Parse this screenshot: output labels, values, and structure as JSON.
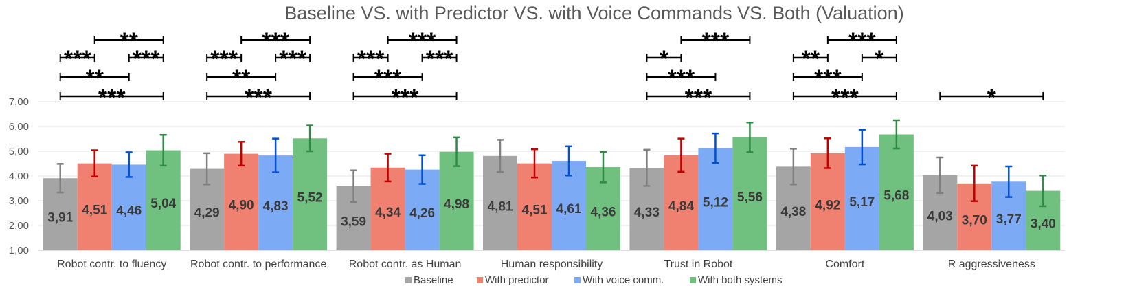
{
  "chart_data": {
    "type": "bar",
    "title": "Baseline VS. with Predictor VS. with Voice Commands VS. Both (Valuation)",
    "xlabel": "",
    "ylabel": "",
    "ylim": [
      1,
      7
    ],
    "yticks": [
      "1,00",
      "2,00",
      "3,00",
      "4,00",
      "5,00",
      "6,00",
      "7,00"
    ],
    "grid": true,
    "legend_position": "bottom",
    "categories": [
      "Robot contr. to fluency",
      "Robot contr. to performance",
      "Robot contr. as Human",
      "Human responsibility",
      "Trust in Robot",
      "Comfort",
      "R aggressiveness"
    ],
    "series": [
      {
        "name": "Baseline",
        "color": "#a5a5a5",
        "error_color": "#808080",
        "values": [
          3.91,
          4.29,
          3.59,
          4.81,
          4.33,
          4.38,
          4.03
        ],
        "labels": [
          "3,91",
          "4,29",
          "3,59",
          "4,81",
          "4,33",
          "4,38",
          "4,03"
        ],
        "errors": [
          0.58,
          0.63,
          0.64,
          0.65,
          0.73,
          0.72,
          0.72
        ]
      },
      {
        "name": "With predictor",
        "color": "#f08070",
        "error_color": "#c00000",
        "values": [
          4.51,
          4.9,
          4.34,
          4.51,
          4.84,
          4.92,
          3.7
        ],
        "labels": [
          "4,51",
          "4,90",
          "4,34",
          "4,51",
          "4,84",
          "4,92",
          "3,70"
        ],
        "errors": [
          0.53,
          0.48,
          0.56,
          0.57,
          0.67,
          0.6,
          0.72
        ]
      },
      {
        "name": "With voice comm.",
        "color": "#7caaf5",
        "error_color": "#0050d0",
        "values": [
          4.46,
          4.83,
          4.26,
          4.61,
          5.12,
          5.17,
          3.77
        ],
        "labels": [
          "4,46",
          "4,83",
          "4,26",
          "4,61",
          "5,12",
          "5,17",
          "3,77"
        ],
        "errors": [
          0.5,
          0.68,
          0.58,
          0.59,
          0.6,
          0.7,
          0.62
        ]
      },
      {
        "name": "With both systems",
        "color": "#70c080",
        "error_color": "#2e8b45",
        "values": [
          5.04,
          5.52,
          4.98,
          4.36,
          5.56,
          5.68,
          3.4
        ],
        "labels": [
          "5,04",
          "5,52",
          "4,98",
          "4,36",
          "5,56",
          "5,68",
          "3,40"
        ],
        "errors": [
          0.62,
          0.52,
          0.58,
          0.62,
          0.6,
          0.57,
          0.62
        ]
      }
    ],
    "significance": [
      {
        "category": 0,
        "from": 1,
        "to": 3,
        "label": "**"
      },
      {
        "category": 0,
        "from": 0,
        "to": 1,
        "label": "***"
      },
      {
        "category": 0,
        "from": 2,
        "to": 3,
        "label": "***"
      },
      {
        "category": 0,
        "from": 0,
        "to": 2,
        "label": "**"
      },
      {
        "category": 0,
        "from": 0,
        "to": 3,
        "label": "***"
      },
      {
        "category": 1,
        "from": 1,
        "to": 3,
        "label": "***"
      },
      {
        "category": 1,
        "from": 0,
        "to": 1,
        "label": "***"
      },
      {
        "category": 1,
        "from": 2,
        "to": 3,
        "label": "***"
      },
      {
        "category": 1,
        "from": 0,
        "to": 2,
        "label": "**"
      },
      {
        "category": 1,
        "from": 0,
        "to": 3,
        "label": "***"
      },
      {
        "category": 2,
        "from": 1,
        "to": 3,
        "label": "***"
      },
      {
        "category": 2,
        "from": 0,
        "to": 1,
        "label": "***"
      },
      {
        "category": 2,
        "from": 2,
        "to": 3,
        "label": "***"
      },
      {
        "category": 2,
        "from": 0,
        "to": 2,
        "label": "***"
      },
      {
        "category": 2,
        "from": 0,
        "to": 3,
        "label": "***"
      },
      {
        "category": 4,
        "from": 1,
        "to": 3,
        "label": "***"
      },
      {
        "category": 4,
        "from": 0,
        "to": 1,
        "label": "*"
      },
      {
        "category": 4,
        "from": 0,
        "to": 2,
        "label": "***"
      },
      {
        "category": 4,
        "from": 0,
        "to": 3,
        "label": "***"
      },
      {
        "category": 5,
        "from": 1,
        "to": 3,
        "label": "***"
      },
      {
        "category": 5,
        "from": 0,
        "to": 1,
        "label": "**"
      },
      {
        "category": 5,
        "from": 2,
        "to": 3,
        "label": "*"
      },
      {
        "category": 5,
        "from": 0,
        "to": 2,
        "label": "***"
      },
      {
        "category": 5,
        "from": 0,
        "to": 3,
        "label": "***"
      },
      {
        "category": 6,
        "from": 0,
        "to": 3,
        "label": "*"
      }
    ]
  }
}
